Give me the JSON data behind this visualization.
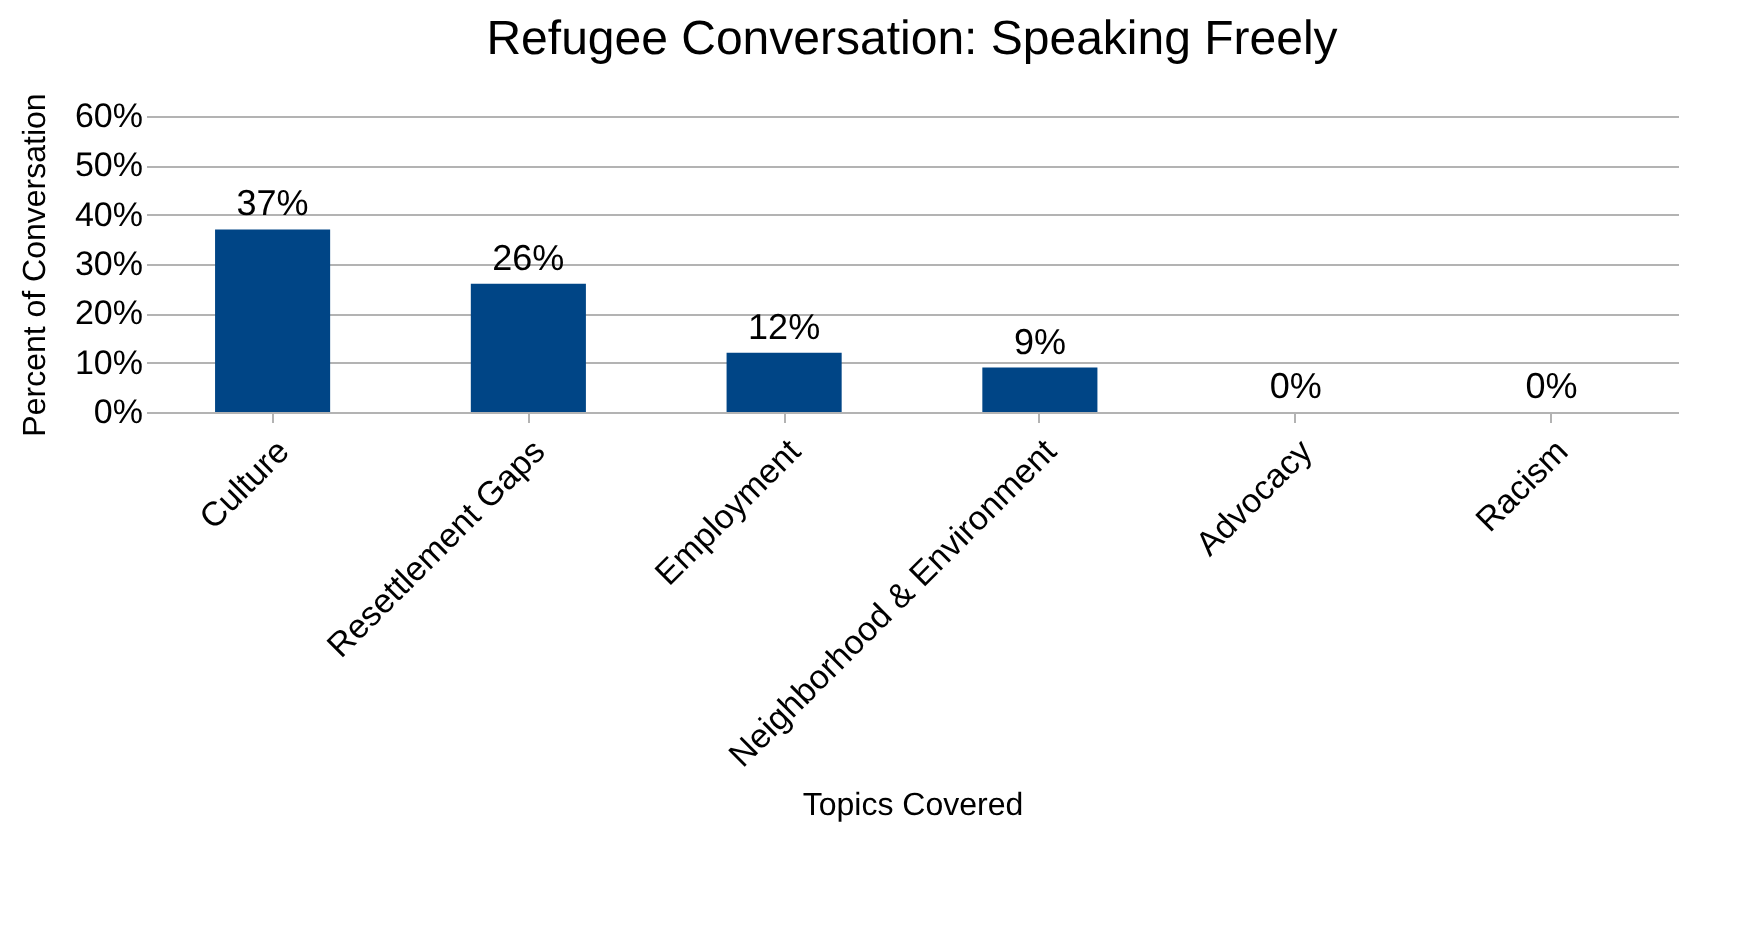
{
  "chart_data": {
    "type": "bar",
    "title": "Refugee Conversation: Speaking Freely",
    "xlabel": "Topics Covered",
    "ylabel": "Percent of Conversation",
    "categories": [
      "Culture",
      "Resettlement Gaps",
      "Employment",
      "Neighborhood & Environment",
      "Advocacy",
      "Racism"
    ],
    "values": [
      37,
      26,
      12,
      9,
      0,
      0
    ],
    "value_labels": [
      "37%",
      "26%",
      "12%",
      "9%",
      "0%",
      "0%"
    ],
    "color": "#004586",
    "ylim": [
      0,
      60
    ],
    "yticks": [
      {
        "value": 0,
        "label": "0%"
      },
      {
        "value": 10,
        "label": "10%"
      },
      {
        "value": 20,
        "label": "20%"
      },
      {
        "value": 30,
        "label": "30%"
      },
      {
        "value": 40,
        "label": "40%"
      },
      {
        "value": 50,
        "label": "50%"
      },
      {
        "value": 60,
        "label": "60%"
      }
    ],
    "grid": "y"
  }
}
